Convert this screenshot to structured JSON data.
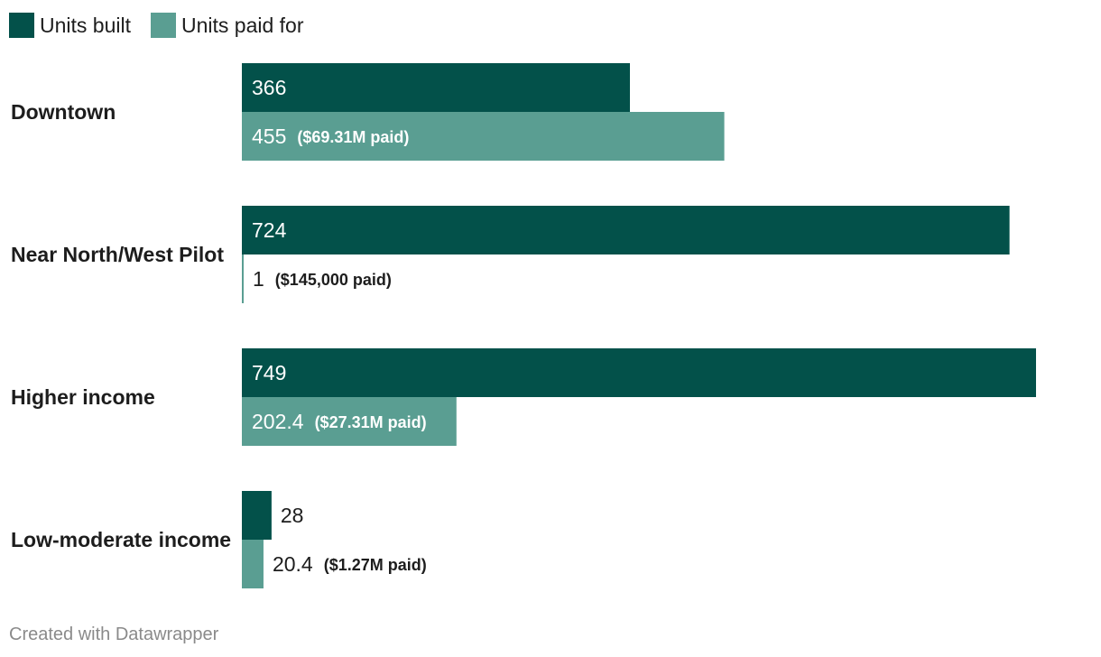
{
  "chart_data": {
    "type": "bar",
    "orientation": "horizontal",
    "categories": [
      "Downtown",
      "Near North/West Pilot",
      "Higher income",
      "Low-moderate income"
    ],
    "series": [
      {
        "name": "Units built",
        "color": "#03514a",
        "values": [
          366,
          724,
          749,
          28
        ],
        "value_labels": [
          "366",
          "724",
          "749",
          "28"
        ]
      },
      {
        "name": "Units paid for",
        "color": "#5a9e92",
        "values": [
          455,
          1,
          202.4,
          20.4
        ],
        "value_labels": [
          "455",
          "1",
          "202.4",
          "20.4"
        ],
        "annotations": [
          "($69.31M paid)",
          "($145,000 paid)",
          "($27.31M paid)",
          "($1.27M paid)"
        ]
      }
    ],
    "xlim": [
      0,
      749
    ],
    "legend_position": "top-left",
    "grid": false
  },
  "footer": {
    "credit": "Created with Datawrapper"
  }
}
